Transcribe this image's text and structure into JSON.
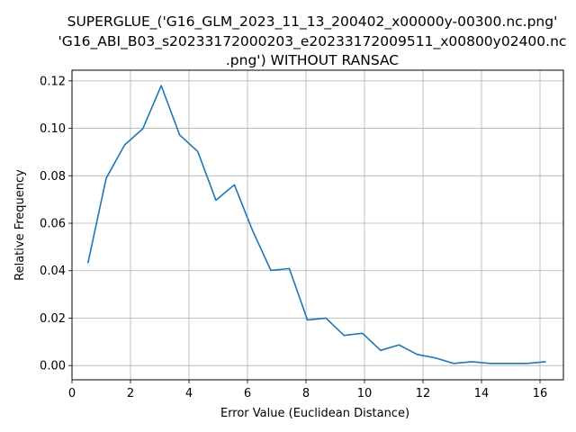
{
  "chart_data": {
    "type": "line",
    "title_lines": [
      "SUPERGLUE_('G16_GLM_2023_11_13_200402_x00000y-00300.nc.png'",
      "'G16_ABI_B03_s20233172000203_e20233172009511_x00800y02400.nc",
      ".png') WITHOUT RANSAC"
    ],
    "xlabel": "Error Value (Euclidean Distance)",
    "ylabel": "Relative Frequency",
    "xlim": [
      0,
      16.8
    ],
    "ylim": [
      -0.006,
      0.1245
    ],
    "xticks": [
      0,
      2,
      4,
      6,
      8,
      10,
      12,
      14,
      16
    ],
    "xtick_labels": [
      "0",
      "2",
      "4",
      "6",
      "8",
      "10",
      "12",
      "14",
      "16"
    ],
    "yticks": [
      0.0,
      0.02,
      0.04,
      0.06,
      0.08,
      0.1,
      0.12
    ],
    "ytick_labels": [
      "0.00",
      "0.02",
      "0.04",
      "0.06",
      "0.08",
      "0.10",
      "0.12"
    ],
    "grid": true,
    "line_color": "#1f77b4",
    "series": [
      {
        "x": [
          0.55,
          1.17,
          1.8,
          2.42,
          3.05,
          3.68,
          4.3,
          4.92,
          5.55,
          6.18,
          6.8,
          7.43,
          8.05,
          8.68,
          9.3,
          9.93,
          10.55,
          11.18,
          11.8,
          12.43,
          13.05,
          13.68,
          14.3,
          14.93,
          15.55,
          16.18
        ],
        "y": [
          0.0435,
          0.079,
          0.093,
          0.0998,
          0.118,
          0.0972,
          0.0902,
          0.0697,
          0.0762,
          0.0567,
          0.0401,
          0.0409,
          0.0192,
          0.02,
          0.0127,
          0.0136,
          0.0064,
          0.0087,
          0.0047,
          0.0032,
          0.0009,
          0.0016,
          0.0009,
          0.0009,
          0.0009,
          0.0016
        ]
      }
    ]
  }
}
